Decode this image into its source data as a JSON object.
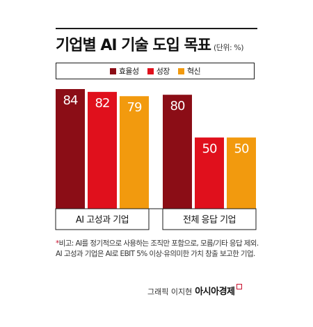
{
  "title": "기업별 AI 기술 도입 목표",
  "unit_note": "(단위: %)",
  "colors": {
    "efficiency": "#8b0d16",
    "growth": "#e0101c",
    "innovation": "#f29a0e",
    "rule": "#1a1a1a"
  },
  "chart_data": {
    "type": "bar",
    "categories": [
      "AI 고성과 기업",
      "전체 응답 기업"
    ],
    "series": [
      {
        "name": "효율성",
        "values": [
          84,
          80
        ]
      },
      {
        "name": "성장",
        "values": [
          82,
          50
        ]
      },
      {
        "name": "혁신",
        "values": [
          79,
          50
        ]
      }
    ],
    "ylim": [
      0,
      100
    ],
    "legend": "top",
    "grid": false
  },
  "footnote": {
    "marker": "*",
    "text": "비고: AI를 정기적으로 사용하는 조직만 포함으로, 모름/기타 응답 제외. AI 고성과 기업은 AI로 EBIT 5% 이상·유의미한 가치 창출 보고한 기업."
  },
  "credit": {
    "text": "그래픽 이지현",
    "brand": "아시아경제"
  }
}
